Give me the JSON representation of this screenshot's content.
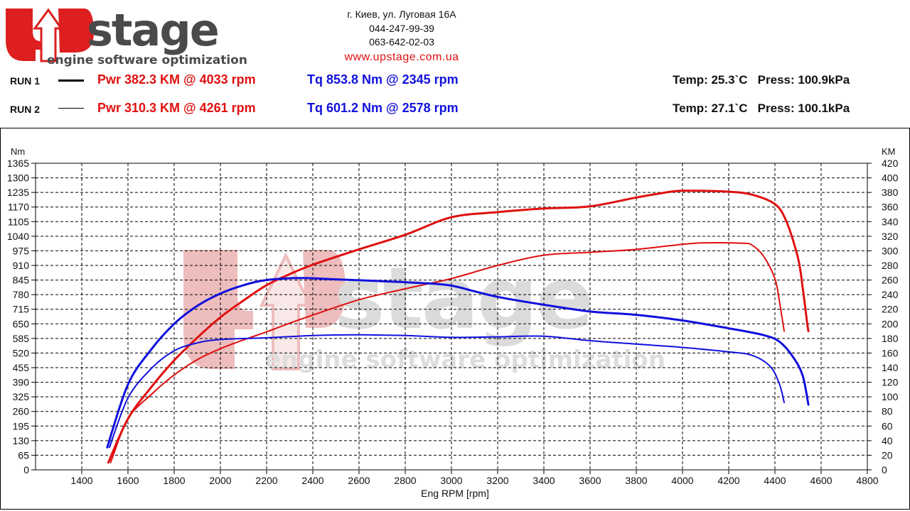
{
  "header": {
    "logo": {
      "text": "stage",
      "letter": "U",
      "tagline": "engine software optimization"
    },
    "contact_lines": [
      "г. Киев, ул. Луговая 16A",
      "044-247-99-39",
      "063-642-02-03"
    ],
    "website": "www.upstage.com.ua"
  },
  "runs": [
    {
      "label": "RUN 1",
      "power": "Pwr  382.3 KM @ 4033 rpm",
      "torque": "Tq 853.8 Nm @ 2345 rpm",
      "temp": "Temp: 25.3`C",
      "press": "Press: 100.9kPa"
    },
    {
      "label": "RUN 2",
      "power": "Pwr  310.3 KM @ 4261 rpm",
      "torque": "Tq 601.2 Nm @ 2578 rpm",
      "temp": "Temp: 27.1`C",
      "press": "Press: 100.1kPa"
    }
  ],
  "colors": {
    "power": "#e01010",
    "torque": "#1010dd",
    "watermark": "#e6a5a5",
    "watermark_gray": "#d3d3d3"
  },
  "chart_data": {
    "type": "line",
    "xlabel": "Eng RPM [rpm]",
    "ylabel_left": "Nm",
    "ylabel_right": "KM",
    "xlim": [
      1200,
      4800
    ],
    "ylim_left": [
      0,
      1365
    ],
    "ylim_right": [
      0,
      420
    ],
    "x_ticks": [
      1400,
      1600,
      1800,
      2000,
      2200,
      2400,
      2600,
      2800,
      3000,
      3200,
      3400,
      3600,
      3800,
      4000,
      4200,
      4400,
      4600,
      4800
    ],
    "y_ticks_left": [
      0,
      65,
      130,
      195,
      260,
      325,
      390,
      455,
      520,
      585,
      650,
      715,
      780,
      845,
      910,
      975,
      1040,
      1105,
      1170,
      1235,
      1300,
      1365
    ],
    "y_ticks_right": [
      0,
      20,
      40,
      60,
      80,
      100,
      120,
      140,
      160,
      180,
      200,
      220,
      240,
      260,
      280,
      300,
      320,
      340,
      360,
      380,
      400,
      420
    ],
    "grid": true,
    "series": [
      {
        "run": "RUN 1",
        "quantity": "power",
        "axis": "right",
        "color": "#e01010",
        "width": 3,
        "x": [
          1515,
          1600,
          1700,
          1800,
          1900,
          2000,
          2100,
          2200,
          2300,
          2400,
          2600,
          2800,
          3000,
          3200,
          3400,
          3600,
          3800,
          3950,
          4033,
          4200,
          4300,
          4400,
          4450,
          4500,
          4520,
          4540,
          4545
        ],
        "y": [
          10,
          70,
          113,
          150,
          181,
          209,
          232,
          253,
          268,
          281,
          302,
          322,
          346,
          353,
          358,
          361,
          373,
          381,
          382.3,
          381,
          377,
          364,
          340,
          290,
          250,
          200,
          190
        ]
      },
      {
        "run": "RUN 2",
        "quantity": "power",
        "axis": "right",
        "color": "#e01010",
        "width": 2,
        "x": [
          1525,
          1600,
          1700,
          1800,
          1900,
          2000,
          2100,
          2200,
          2300,
          2400,
          2600,
          2800,
          3000,
          3200,
          3400,
          3600,
          3800,
          4000,
          4100,
          4261,
          4300,
          4350,
          4400,
          4420,
          4440
        ],
        "y": [
          10,
          70,
          103,
          130,
          151,
          166,
          178,
          189,
          201,
          212,
          233,
          248,
          262,
          280,
          294,
          298,
          302,
          309,
          311,
          310.3,
          308,
          293,
          262,
          230,
          190
        ]
      },
      {
        "run": "RUN 1",
        "quantity": "torque",
        "axis": "left",
        "color": "#1010dd",
        "width": 3,
        "x": [
          1510,
          1600,
          1700,
          1800,
          1900,
          2000,
          2100,
          2200,
          2345,
          2500,
          2700,
          2900,
          3000,
          3100,
          3200,
          3400,
          3600,
          3800,
          4000,
          4200,
          4350,
          4420,
          4480,
          4520,
          4545
        ],
        "y": [
          100,
          380,
          535,
          650,
          730,
          785,
          822,
          845,
          853.8,
          848,
          840,
          830,
          820,
          795,
          770,
          735,
          705,
          690,
          665,
          630,
          600,
          570,
          500,
          420,
          290
        ]
      },
      {
        "run": "RUN 2",
        "quantity": "torque",
        "axis": "left",
        "color": "#1010dd",
        "width": 2,
        "x": [
          1520,
          1600,
          1700,
          1800,
          1900,
          2000,
          2200,
          2400,
          2578,
          2800,
          3000,
          3200,
          3400,
          3600,
          3800,
          4000,
          4200,
          4300,
          4380,
          4420,
          4440
        ],
        "y": [
          100,
          320,
          450,
          530,
          565,
          580,
          588,
          598,
          601.2,
          598,
          590,
          592,
          595,
          575,
          560,
          545,
          525,
          510,
          460,
          380,
          300
        ]
      }
    ]
  }
}
